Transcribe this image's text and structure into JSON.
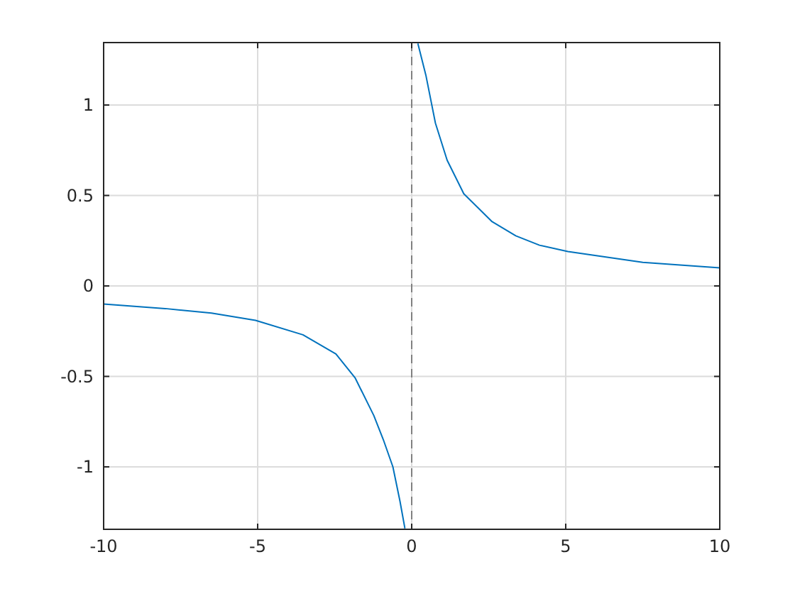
{
  "chart_data": {
    "type": "line",
    "xlim": [
      -10,
      10
    ],
    "ylim": [
      -1.345,
      1.345
    ],
    "xticks": [
      -10,
      -5,
      0,
      5,
      10
    ],
    "yticks": [
      -1,
      -0.5,
      0,
      0.5,
      1
    ],
    "grid": true,
    "line_style": "solid",
    "marker": "none",
    "series": [
      {
        "color": "#0072bd",
        "x": [
          -10,
          -8,
          -6.5,
          -5.07,
          -3.53,
          -2.46,
          -1.84,
          -1.23,
          -0.92,
          -0.61,
          -0.38,
          -0.22
        ],
        "values": [
          -0.1,
          -0.125,
          -0.15,
          -0.19,
          -0.27,
          -0.376,
          -0.507,
          -0.716,
          -0.85,
          -1.0,
          -1.19,
          -1.34
        ]
      },
      {
        "color": "#0072bd",
        "x": [
          0.2,
          0.46,
          0.77,
          1.15,
          1.69,
          2.61,
          3.38,
          4.15,
          5.07,
          7.5,
          10
        ],
        "values": [
          1.34,
          1.165,
          0.9,
          0.695,
          0.51,
          0.355,
          0.277,
          0.225,
          0.19,
          0.13,
          0.1
        ]
      }
    ],
    "ref_lines": [
      {
        "axis": "x",
        "value": 0,
        "color": "#808080",
        "line_style": "dashed"
      }
    ]
  }
}
